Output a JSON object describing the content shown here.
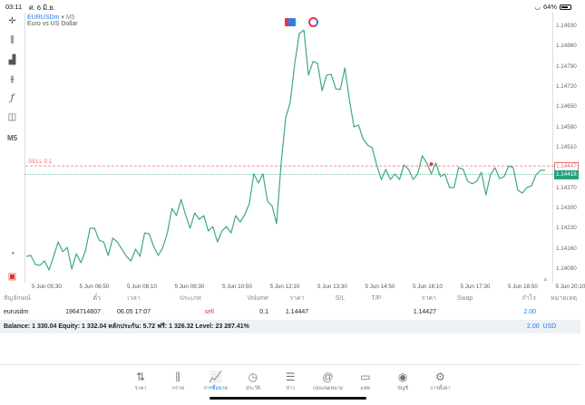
{
  "status_bar": {
    "time": "03:11",
    "date": "ศ. 6 มิ.ย.",
    "battery": "64%",
    "battery_level": 0.64
  },
  "toolbar": {
    "crosshair": "crosshair-icon",
    "timeframe": "M5"
  },
  "chart_header": {
    "symbol": "EURUSDm",
    "arrow": "▾",
    "timeframe": "M5",
    "description": "Euro vs US Dollar"
  },
  "chart_data": {
    "type": "line",
    "color": "#3daa7c",
    "ylim": [
      1.1405,
      1.1496
    ],
    "y_ticks": [
      "1.14930",
      "1.14860",
      "1.14790",
      "1.14720",
      "1.14650",
      "1.14580",
      "1.14510",
      "1.14370",
      "1.14300",
      "1.14230",
      "1.14160",
      "1.14090"
    ],
    "x_ticks": [
      "5 Jun 05:30",
      "5 Jun 06:50",
      "5 Jun 08:10",
      "5 Jun 09:30",
      "5 Jun 10:50",
      "5 Jun 12:10",
      "5 Jun 13:30",
      "5 Jun 14:50",
      "5 Jun 16:10",
      "5 Jun 17:30",
      "5 Jun 18:50",
      "5 Jun 20:10"
    ],
    "values": [
      1.14134,
      1.14137,
      1.14106,
      1.14103,
      1.14118,
      1.14087,
      1.14134,
      1.14184,
      1.1415,
      1.14165,
      1.1409,
      1.14143,
      1.14112,
      1.14153,
      1.14231,
      1.14231,
      1.1419,
      1.14184,
      1.14137,
      1.14197,
      1.14184,
      1.14159,
      1.14134,
      1.14118,
      1.14159,
      1.14134,
      1.14215,
      1.14212,
      1.14168,
      1.14137,
      1.14165,
      1.14215,
      1.143,
      1.14275,
      1.14331,
      1.14278,
      1.14231,
      1.14284,
      1.14262,
      1.14275,
      1.14222,
      1.14237,
      1.14184,
      1.14222,
      1.14237,
      1.14215,
      1.14275,
      1.14253,
      1.14278,
      1.14316,
      1.14419,
      1.14388,
      1.14419,
      1.14325,
      1.14309,
      1.14247,
      1.14457,
      1.14613,
      1.14667,
      1.14802,
      1.14905,
      1.14917,
      1.14761,
      1.14808,
      1.14802,
      1.14707,
      1.14761,
      1.14764,
      1.14714,
      1.14711,
      1.14786,
      1.14676,
      1.14582,
      1.14588,
      1.14541,
      1.14519,
      1.1451,
      1.1445,
      1.144,
      1.14435,
      1.144,
      1.14419,
      1.144,
      1.1445,
      1.14435,
      1.144,
      1.14419,
      1.14482,
      1.14457,
      1.14419,
      1.14457,
      1.1441,
      1.14419,
      1.14372,
      1.14372,
      1.14441,
      1.14435,
      1.14394,
      1.14385,
      1.14394,
      1.14425,
      1.14347,
      1.14416,
      1.14441,
      1.14403,
      1.1441,
      1.14447,
      1.14441,
      1.14363,
      1.14353,
      1.14372,
      1.14378,
      1.14416,
      1.14432,
      1.14432
    ],
    "order_line": {
      "label": "SELL 0.1",
      "price": 1.14447,
      "price_label": "1.14447",
      "color": "#e57373"
    },
    "current": {
      "price": 1.14418,
      "price_label": "1.14418",
      "color": "#26a17b"
    },
    "order_marker_index": 89
  },
  "table": {
    "headers": [
      "สัญลักษณ์",
      "ตั๋ว",
      "เวลา",
      "ประเภท",
      "Volume",
      "ราคา",
      "S/L",
      "T/P",
      "ราคา",
      "Swap",
      "กำไร",
      "หมายเหตุ"
    ],
    "rows": [
      {
        "symbol": "eurusdm",
        "ticket": "1964714607",
        "time": "06.05 17:07",
        "type": "sell",
        "volume": "0.1",
        "open_price": "1.14447",
        "sl": "",
        "tp": "",
        "price": "1.14427",
        "swap": "",
        "profit": "2.00",
        "comment": ""
      }
    ]
  },
  "balance": {
    "text": "Balance: 1 330.04 Equity: 1 332.04 หลักประกัน: 5.72 ฟรี: 1 326.32 Level: 23 287.41%",
    "profit": "2.00",
    "currency": "USD"
  },
  "nav": [
    {
      "label": "ราคา",
      "icon": "⇅"
    },
    {
      "label": "กราฟ",
      "icon": "⫼"
    },
    {
      "label": "การซื้อขาย",
      "icon": "📈",
      "active": true
    },
    {
      "label": "ประวัติ",
      "icon": "◷"
    },
    {
      "label": "ข่าว",
      "icon": "☰"
    },
    {
      "label": "กล่องจดหมาย",
      "icon": "@"
    },
    {
      "label": "แชท",
      "icon": "▭"
    },
    {
      "label": "บัญชี",
      "icon": "◉"
    },
    {
      "label": "การตั้งค่า",
      "icon": "⚙"
    }
  ]
}
